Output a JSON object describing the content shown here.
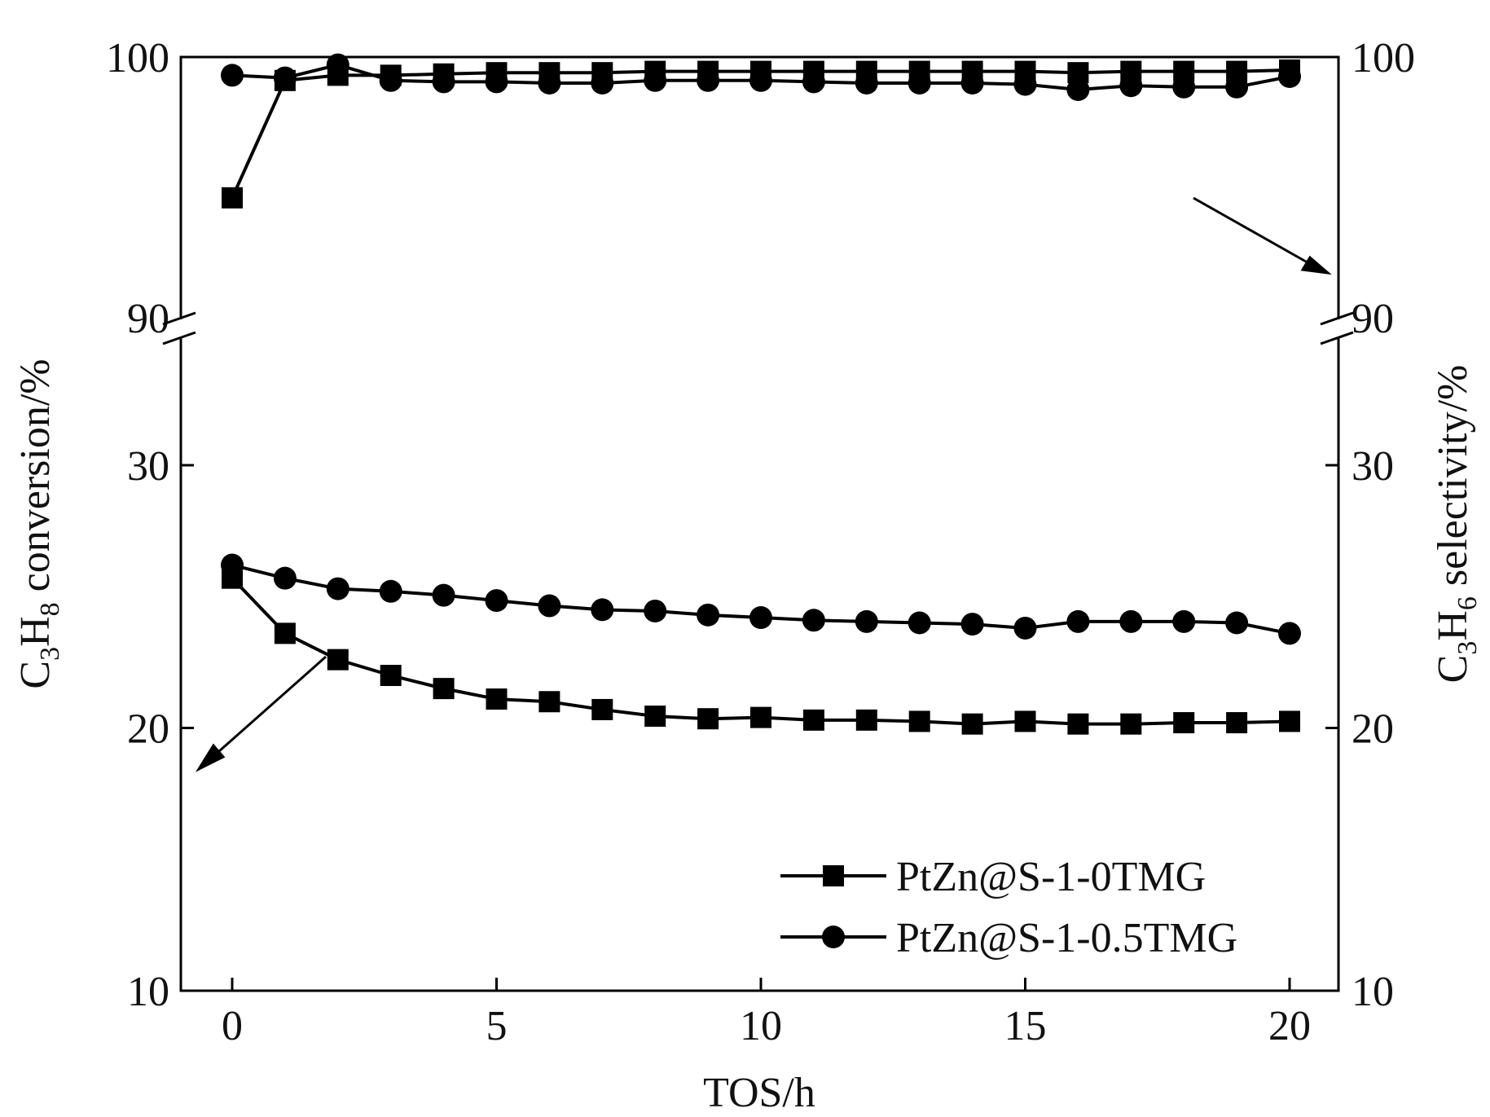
{
  "chart_data": {
    "type": "line",
    "x_label": "TOS/h",
    "y_left_label": {
      "p1": "C",
      "s1": "3",
      "p2": "H",
      "s2": "8",
      "p3": " conversion/%"
    },
    "y_right_label": {
      "p1": "C",
      "s1": "3",
      "p2": "H",
      "s2": "6",
      "p3": " selectivity/%"
    },
    "x_range": [
      -2,
      21
    ],
    "x_ticks": [
      0,
      5,
      10,
      15,
      20
    ],
    "x_tick_labels": [
      "0",
      "5",
      "10",
      "15",
      "20"
    ],
    "y_axis_broken": true,
    "y_lower_range": [
      10,
      35
    ],
    "y_upper_range": [
      90,
      100
    ],
    "y_lower_ticks": [
      10,
      20,
      30
    ],
    "y_lower_tick_labels": [
      "10",
      "20",
      "30"
    ],
    "y_upper_ticks": [
      90,
      100
    ],
    "y_upper_tick_labels": [
      "90",
      "100"
    ],
    "x": [
      0,
      1,
      2,
      3,
      4,
      5,
      6,
      7,
      8,
      9,
      10,
      11,
      12,
      13,
      14,
      15,
      16,
      17,
      18,
      19,
      20
    ],
    "series": [
      {
        "name": "PtZn@S-1-0TMG",
        "marker": "square",
        "conversion": [
          25.7,
          23.6,
          22.6,
          22.0,
          21.5,
          21.1,
          21.0,
          20.7,
          20.45,
          20.35,
          20.4,
          20.3,
          20.3,
          20.25,
          20.15,
          20.25,
          20.15,
          20.15,
          20.2,
          20.2,
          20.25
        ],
        "selectivity": [
          94.6,
          99.1,
          99.3,
          99.3,
          99.35,
          99.4,
          99.4,
          99.4,
          99.45,
          99.45,
          99.45,
          99.45,
          99.45,
          99.45,
          99.45,
          99.45,
          99.4,
          99.45,
          99.45,
          99.45,
          99.5
        ]
      },
      {
        "name": "PtZn@S-1-0.5TMG",
        "marker": "circle",
        "conversion": [
          26.2,
          25.7,
          25.3,
          25.2,
          25.05,
          24.85,
          24.65,
          24.5,
          24.45,
          24.3,
          24.2,
          24.1,
          24.05,
          24.0,
          23.95,
          23.8,
          24.05,
          24.05,
          24.05,
          24.0,
          23.6
        ],
        "selectivity": [
          99.3,
          99.2,
          99.7,
          99.1,
          99.05,
          99.05,
          99.0,
          99.0,
          99.1,
          99.1,
          99.1,
          99.05,
          99.0,
          99.0,
          99.0,
          98.95,
          98.75,
          98.9,
          98.85,
          98.85,
          99.25
        ]
      }
    ],
    "legend_position": "bottom-right"
  }
}
